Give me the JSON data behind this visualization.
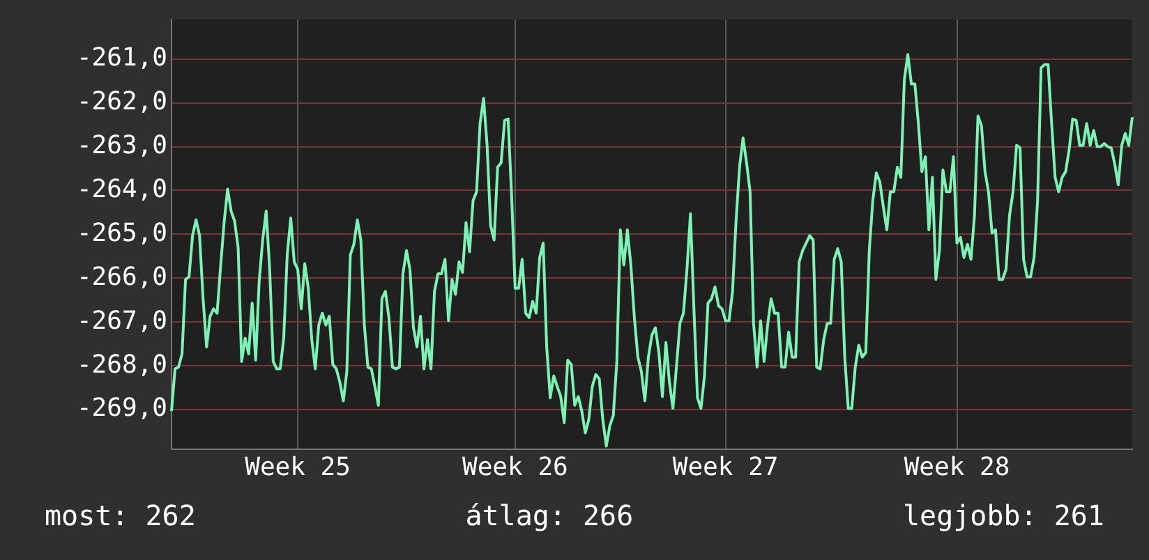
{
  "chart_data": {
    "type": "line",
    "series": [
      {
        "color": "#7ef2b4",
        "values": [
          -269.03,
          -268.07,
          -268.03,
          -267.73,
          -266.03,
          -265.97,
          -265.03,
          -264.67,
          -265.03,
          -266.47,
          -267.57,
          -266.87,
          -266.7,
          -266.8,
          -265.73,
          -264.73,
          -263.97,
          -264.47,
          -264.7,
          -265.3,
          -267.9,
          -267.37,
          -267.73,
          -266.57,
          -267.87,
          -266.07,
          -265.13,
          -264.47,
          -265.8,
          -267.9,
          -268.07,
          -268.07,
          -267.37,
          -265.47,
          -264.63,
          -265.63,
          -265.8,
          -266.7,
          -265.67,
          -266.23,
          -267.4,
          -268.07,
          -267.07,
          -266.8,
          -267.07,
          -266.87,
          -267.97,
          -268.07,
          -268.37,
          -268.8,
          -268.13,
          -265.47,
          -265.23,
          -264.67,
          -265.13,
          -267.07,
          -268.03,
          -268.07,
          -268.47,
          -268.9,
          -266.47,
          -266.3,
          -266.9,
          -268.03,
          -268.07,
          -268.03,
          -265.9,
          -265.37,
          -265.8,
          -267.13,
          -267.57,
          -266.87,
          -268.07,
          -267.4,
          -268.07,
          -266.3,
          -265.9,
          -265.9,
          -265.57,
          -266.97,
          -266.03,
          -266.37,
          -265.63,
          -265.87,
          -264.73,
          -265.4,
          -264.23,
          -264.03,
          -262.47,
          -261.9,
          -262.97,
          -264.8,
          -265.13,
          -263.47,
          -263.37,
          -262.4,
          -262.37,
          -264.13,
          -266.23,
          -266.23,
          -265.57,
          -266.8,
          -266.9,
          -266.53,
          -266.8,
          -265.53,
          -265.2,
          -267.57,
          -268.73,
          -268.23,
          -268.47,
          -268.7,
          -269.3,
          -267.87,
          -267.97,
          -268.9,
          -268.7,
          -269.03,
          -269.53,
          -269.23,
          -268.47,
          -268.2,
          -268.3,
          -269.23,
          -269.83,
          -269.37,
          -269.13,
          -267.9,
          -264.9,
          -265.7,
          -264.9,
          -265.7,
          -266.9,
          -267.8,
          -268.13,
          -268.8,
          -267.8,
          -267.3,
          -267.13,
          -267.7,
          -268.7,
          -267.47,
          -268.37,
          -268.97,
          -268.03,
          -267.03,
          -266.8,
          -265.8,
          -264.53,
          -266.73,
          -268.73,
          -268.97,
          -268.23,
          -266.57,
          -266.47,
          -266.2,
          -266.63,
          -266.7,
          -266.97,
          -266.97,
          -266.3,
          -264.7,
          -263.47,
          -262.8,
          -263.37,
          -264.03,
          -267.03,
          -268.03,
          -266.97,
          -267.9,
          -267.07,
          -266.47,
          -266.8,
          -266.8,
          -268.03,
          -268.03,
          -267.23,
          -267.8,
          -267.8,
          -265.63,
          -265.37,
          -265.2,
          -265.03,
          -265.13,
          -268.03,
          -268.07,
          -267.4,
          -267.03,
          -267.03,
          -265.57,
          -265.33,
          -265.63,
          -267.8,
          -268.97,
          -268.97,
          -268.03,
          -267.53,
          -267.8,
          -267.7,
          -265.37,
          -264.23,
          -263.6,
          -263.8,
          -264.37,
          -264.9,
          -264.03,
          -264.03,
          -263.47,
          -263.7,
          -261.47,
          -260.9,
          -261.57,
          -261.57,
          -262.47,
          -263.57,
          -263.23,
          -264.9,
          -263.7,
          -266.03,
          -265.37,
          -263.53,
          -264.03,
          -264.03,
          -263.23,
          -265.2,
          -265.07,
          -265.53,
          -265.23,
          -265.57,
          -264.57,
          -262.3,
          -262.53,
          -263.57,
          -264.03,
          -264.97,
          -264.9,
          -266.03,
          -266.03,
          -265.8,
          -264.57,
          -264.03,
          -262.97,
          -263.03,
          -265.57,
          -265.97,
          -265.97,
          -265.53,
          -264.23,
          -261.2,
          -261.13,
          -261.13,
          -262.47,
          -263.7,
          -264.03,
          -263.7,
          -263.57,
          -263.07,
          -262.37,
          -262.4,
          -262.97,
          -262.97,
          -262.47,
          -262.97,
          -262.63,
          -263,
          -263,
          -262.93,
          -263,
          -263.03,
          -263.4,
          -263.87,
          -262.97,
          -262.7,
          -262.97,
          -262.33
        ]
      }
    ],
    "categories": [
      null,
      null,
      null,
      null,
      null,
      null,
      null,
      null,
      null,
      null,
      null,
      null,
      null,
      null,
      null,
      null,
      null,
      null,
      null,
      null,
      null,
      null,
      null,
      null,
      null,
      null,
      null,
      null,
      null,
      null,
      null,
      null,
      null,
      null,
      null,
      null,
      "Week 25",
      null,
      null,
      null,
      null,
      null,
      null,
      null,
      null,
      null,
      null,
      null,
      null,
      null,
      null,
      null,
      null,
      null,
      null,
      null,
      null,
      null,
      null,
      null,
      null,
      null,
      null,
      null,
      null,
      null,
      null,
      null,
      null,
      null,
      null,
      null,
      null,
      null,
      null,
      null,
      null,
      null,
      null,
      null,
      null,
      null,
      null,
      null,
      null,
      null,
      null,
      null,
      null,
      null,
      null,
      null,
      null,
      null,
      null,
      null,
      null,
      null,
      "Week 26",
      null,
      null,
      null,
      null,
      null,
      null,
      null,
      null,
      null,
      null,
      null,
      null,
      null,
      null,
      null,
      null,
      null,
      null,
      null,
      null,
      null,
      null,
      null,
      null,
      null,
      null,
      null,
      null,
      null,
      null,
      null,
      null,
      null,
      null,
      null,
      null,
      null,
      null,
      null,
      null,
      null,
      null,
      null,
      null,
      null,
      null,
      null,
      null,
      null,
      null,
      null,
      null,
      null,
      null,
      null,
      null,
      null,
      null,
      null,
      "Week 27",
      null,
      null,
      null,
      null,
      null,
      null,
      null,
      null,
      null,
      null,
      null,
      null,
      null,
      null,
      null,
      null,
      null,
      null,
      null,
      null,
      null,
      null,
      null,
      null,
      null,
      null,
      null,
      null,
      null,
      null,
      null,
      null,
      null,
      null,
      null,
      null,
      null,
      null,
      null,
      null,
      null,
      null,
      null,
      null,
      null,
      null,
      null,
      null,
      null,
      null,
      null,
      null,
      null,
      null,
      null,
      null,
      null,
      null,
      null,
      null,
      null,
      null,
      null,
      null,
      null,
      "Week 28",
      null,
      null,
      null,
      null,
      null,
      null,
      null,
      null,
      null,
      null,
      null,
      null,
      null,
      null,
      null,
      null,
      null,
      null,
      null,
      null,
      null,
      null,
      null,
      null,
      null,
      null,
      null,
      null,
      null,
      null,
      null,
      null,
      null,
      null,
      null,
      null,
      null,
      null,
      null,
      null,
      null,
      null,
      null,
      null,
      null,
      null,
      null,
      null,
      null,
      null
    ],
    "ylim": [
      -269.9,
      -260.1
    ],
    "yticks": [
      {
        "value": -269,
        "label": "-269,0"
      },
      {
        "value": -268,
        "label": "-268,0"
      },
      {
        "value": -267,
        "label": "-267,0"
      },
      {
        "value": -266,
        "label": "-266,0"
      },
      {
        "value": -265,
        "label": "-265,0"
      },
      {
        "value": -264,
        "label": "-264,0"
      },
      {
        "value": -263,
        "label": "-263,0"
      },
      {
        "value": -262,
        "label": "-262,0"
      },
      {
        "value": -261,
        "label": "-261,0"
      }
    ],
    "grid": true,
    "annotations": [
      "most: 262",
      "átlag: 266",
      "legjobb: 261"
    ]
  }
}
